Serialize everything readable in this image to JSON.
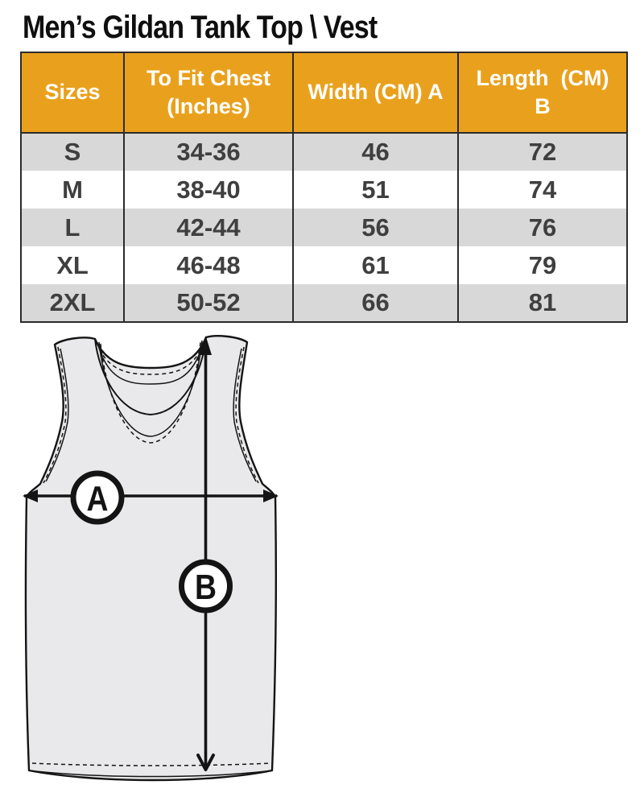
{
  "title": "Men’s Gildan Tank Top \\ Vest",
  "table": {
    "headers": [
      "Sizes",
      "To Fit Chest\n(Inches)",
      "Width (CM) A",
      "Length  (CM)\nB"
    ],
    "rows": [
      [
        "S",
        "34-36",
        "46",
        "72"
      ],
      [
        "M",
        "38-40",
        "51",
        "74"
      ],
      [
        "L",
        "42-44",
        "56",
        "76"
      ],
      [
        "XL",
        "46-48",
        "61",
        "79"
      ],
      [
        "2XL",
        "50-52",
        "66",
        "81"
      ]
    ],
    "colors": {
      "header_bg": "#E9A11D",
      "header_text": "#FFFFFF",
      "row_alt_bg": "#D8D8D8",
      "row_bg": "#FFFFFF",
      "cell_text": "#3F3F3F",
      "border": "#2B2B2B"
    }
  },
  "diagram": {
    "width_label": "A",
    "length_label": "B",
    "colors": {
      "garment_fill": "#E9E9EB",
      "line": "#141414"
    }
  }
}
